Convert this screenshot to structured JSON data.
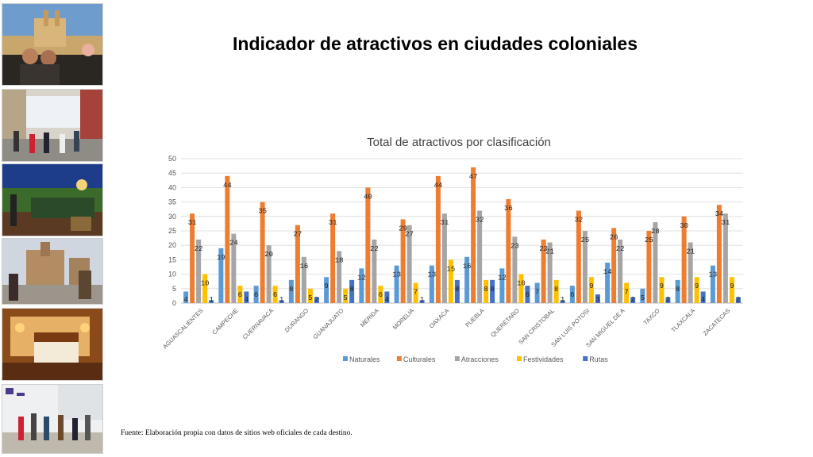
{
  "slide": {
    "title": "Indicador de atractivos en ciudades coloniales",
    "source_note": "Fuente: Elaboración propia con datos de sitios web oficiales de cada destino."
  },
  "photos": [
    {
      "name": "photo-couple-pool"
    },
    {
      "name": "photo-street-crowd"
    },
    {
      "name": "photo-terrace-night"
    },
    {
      "name": "photo-church-plaza"
    },
    {
      "name": "photo-hotel-room"
    },
    {
      "name": "photo-pedestrians"
    }
  ],
  "chart_data": {
    "type": "bar",
    "title": "Total de atractivos por clasificación",
    "categories": [
      "AGUASCALIENTES",
      "CAMPECHE",
      "CUERNAVACA",
      "DURANGO",
      "GUANAJUATO",
      "MERIDA",
      "MORELIA",
      "OAXACA",
      "PUEBLA",
      "QUERETARO",
      "SAN CRISTOBAL",
      "SAN LUIS POTOSI",
      "SAN MIGUEL DE A",
      "TAXCO",
      "TLAXCALA",
      "ZACATECAS"
    ],
    "series": [
      {
        "name": "Naturales",
        "color": "#5b9bd5",
        "values": [
          4,
          19,
          6,
          8,
          9,
          12,
          13,
          13,
          16,
          12,
          7,
          6,
          14,
          5,
          8,
          13
        ]
      },
      {
        "name": "Culturales",
        "color": "#ed7d31",
        "values": [
          31,
          44,
          35,
          27,
          31,
          40,
          29,
          44,
          47,
          36,
          22,
          32,
          26,
          25,
          30,
          34
        ]
      },
      {
        "name": "Atracciones",
        "color": "#a5a5a5",
        "values": [
          22,
          24,
          20,
          16,
          18,
          22,
          27,
          31,
          32,
          23,
          21,
          25,
          22,
          28,
          21,
          31
        ]
      },
      {
        "name": "Festividades",
        "color": "#ffc000",
        "values": [
          10,
          6,
          6,
          5,
          5,
          6,
          7,
          15,
          8,
          10,
          8,
          9,
          7,
          9,
          9,
          9
        ]
      },
      {
        "name": "Rutas",
        "color": "#4472c4",
        "values": [
          1,
          4,
          1,
          2,
          8,
          4,
          1,
          8,
          8,
          6,
          1,
          3,
          2,
          2,
          4,
          2
        ]
      }
    ],
    "ylim": [
      0,
      50
    ],
    "yticks": [
      0,
      5,
      10,
      15,
      20,
      25,
      30,
      35,
      40,
      45,
      50
    ],
    "grid": true,
    "legend_position": "bottom"
  }
}
